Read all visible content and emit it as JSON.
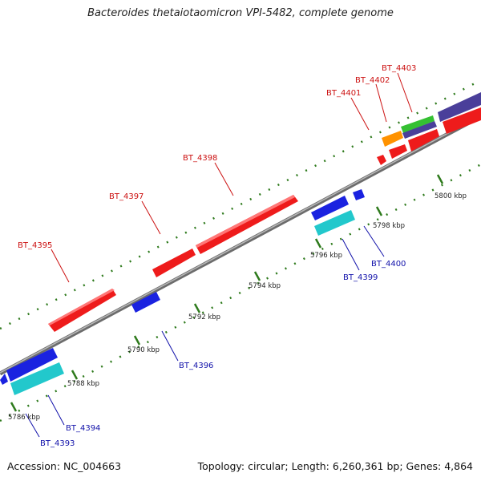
{
  "title": "Bacteroides thetaiotaomicron VPI-5482, complete genome",
  "footer": {
    "accession": "Accession: NC_004663",
    "summary": "Topology: circular; Length: 6,260,361 bp; Genes: 4,864"
  },
  "colors": {
    "forward_gene": "#ee1b1b",
    "reverse_gene": "#1a22e0",
    "cyan_gene": "#22c8cc",
    "orange_gene": "#ff9200",
    "green_gene": "#35c033",
    "purple_gene": "#4a3f9a",
    "forward_label": "#cc1111",
    "reverse_label": "#1111aa",
    "backbone": "#8a8a8a",
    "tick": "#2e7a1c"
  },
  "scale_labels": [
    "5786 kbp",
    "5788 kbp",
    "5790 kbp",
    "5792 kbp",
    "5794 kbp",
    "5796 kbp",
    "5798 kbp",
    "5800 kbp"
  ],
  "forward_genes": [
    "BT_4395",
    "BT_4397",
    "BT_4398",
    "BT_4401",
    "BT_4402",
    "BT_4403"
  ],
  "reverse_genes": [
    "BT_4393",
    "BT_4394",
    "BT_4396",
    "BT_4399",
    "BT_4400"
  ]
}
